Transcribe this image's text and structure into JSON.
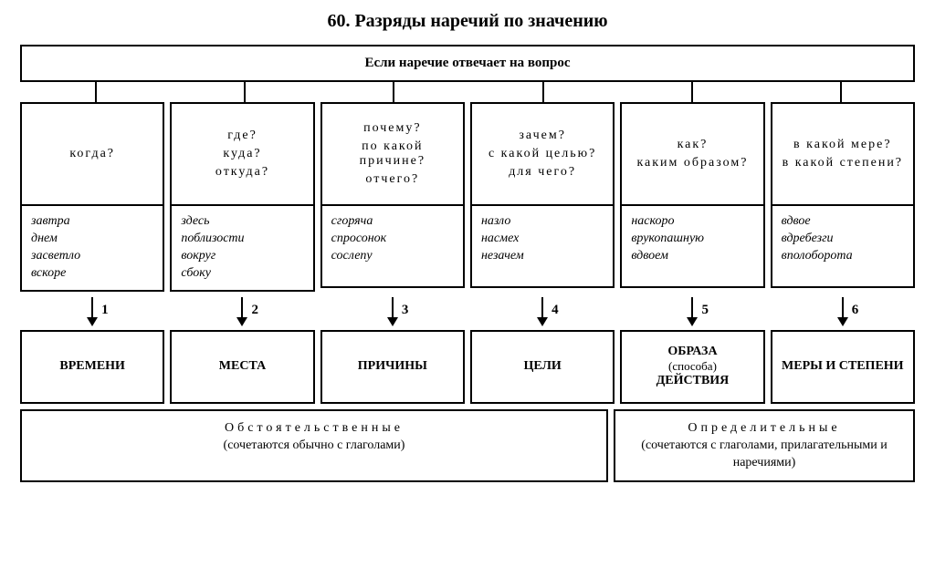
{
  "title": "60. Разряды наречий по значению",
  "root": "Если наречие отвечает на вопрос",
  "layout": {
    "column_count": 6,
    "border_color": "#000000",
    "background_color": "#ffffff",
    "font_family": "Times New Roman",
    "title_fontsize": 20,
    "cell_fontsize": 14
  },
  "columns": [
    {
      "num": "1",
      "questions": [
        "когда?"
      ],
      "examples": [
        "завтра",
        "днем",
        "засветло",
        "вскоре"
      ],
      "label_main": "ВРЕМЕНИ",
      "label_sub": ""
    },
    {
      "num": "2",
      "questions": [
        "где?",
        "куда?",
        "откуда?"
      ],
      "examples": [
        "здесь",
        "поблизости",
        "вокруг",
        "сбоку"
      ],
      "label_main": "МЕСТА",
      "label_sub": ""
    },
    {
      "num": "3",
      "questions": [
        "почему?",
        "по какой причине?",
        "отчего?"
      ],
      "examples": [
        "сгоряча",
        "спросонок",
        "сослепу"
      ],
      "label_main": "ПРИЧИНЫ",
      "label_sub": ""
    },
    {
      "num": "4",
      "questions": [
        "зачем?",
        "с какой целью?",
        "для чего?"
      ],
      "examples": [
        "назло",
        "насмех",
        "незачем"
      ],
      "label_main": "ЦЕЛИ",
      "label_sub": ""
    },
    {
      "num": "5",
      "questions": [
        "как?",
        "каким образом?"
      ],
      "examples": [
        "наскоро",
        "врукопашную",
        "вдвоем"
      ],
      "label_main": "ОБРАЗА",
      "label_sub": "(способа)",
      "label_main2": "ДЕЙСТВИЯ"
    },
    {
      "num": "6",
      "questions": [
        "в какой мере?",
        "в какой степени?"
      ],
      "examples": [
        "вдвое",
        "вдребезги",
        "вполоборота"
      ],
      "label_main": "МЕРЫ И СТЕПЕНИ",
      "label_sub": ""
    }
  ],
  "groups": [
    {
      "title": "Обстоятельственные",
      "note": "(сочетаются обычно с глаголами)",
      "span": 4
    },
    {
      "title": "Определительные",
      "note": "(сочетаются с глаголами, прилагательными и наречиями)",
      "span": 2
    }
  ]
}
